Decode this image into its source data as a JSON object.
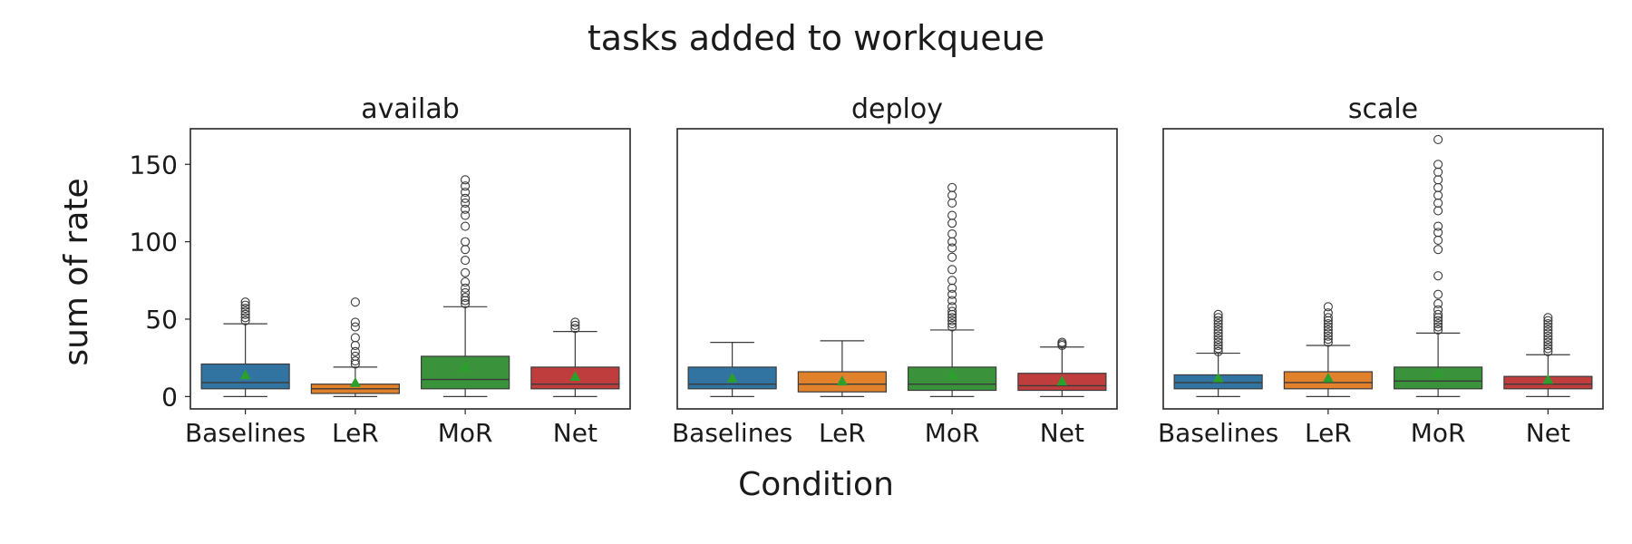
{
  "chart_data": {
    "type": "box",
    "title": "tasks added to workqueue",
    "xlabel": "Condition",
    "ylabel": "sum of rate",
    "ylim": [
      -8,
      173
    ],
    "yticks": [
      0,
      50,
      100,
      150
    ],
    "categories": [
      "Baselines",
      "LeR",
      "MoR",
      "Net"
    ],
    "colors": {
      "Baselines": "#3274a1",
      "LeR": "#e1812c",
      "MoR": "#3a923a",
      "Net": "#c03d3e",
      "mean_marker": "#2ca02c"
    },
    "grid": false,
    "legend": "none",
    "panels": [
      {
        "name": "availab",
        "boxes": [
          {
            "category": "Baselines",
            "whisker_low": 0,
            "q1": 5,
            "median": 9,
            "q3": 21,
            "whisker_high": 47,
            "mean": 14,
            "outliers": [
              49,
              51,
              53,
              55,
              57,
              59,
              61
            ]
          },
          {
            "category": "LeR",
            "whisker_low": 0,
            "q1": 2,
            "median": 5,
            "q3": 8,
            "whisker_high": 19,
            "mean": 9,
            "outliers": [
              21,
              23,
              26,
              29,
              33,
              38,
              45,
              48,
              61
            ]
          },
          {
            "category": "MoR",
            "whisker_low": 0,
            "q1": 5,
            "median": 11,
            "q3": 26,
            "whisker_high": 58,
            "mean": 19,
            "outliers": [
              60,
              62,
              64,
              67,
              70,
              74,
              80,
              88,
              95,
              100,
              110,
              117,
              121,
              125,
              128,
              132,
              136,
              140
            ]
          },
          {
            "category": "Net",
            "whisker_low": 0,
            "q1": 5,
            "median": 8,
            "q3": 19,
            "whisker_high": 42,
            "mean": 13,
            "outliers": [
              44,
              46,
              48
            ]
          }
        ]
      },
      {
        "name": "deploy",
        "boxes": [
          {
            "category": "Baselines",
            "whisker_low": 0,
            "q1": 5,
            "median": 8,
            "q3": 19,
            "whisker_high": 35,
            "mean": 12,
            "outliers": []
          },
          {
            "category": "LeR",
            "whisker_low": 0,
            "q1": 3,
            "median": 8,
            "q3": 16,
            "whisker_high": 36,
            "mean": 10,
            "outliers": []
          },
          {
            "category": "MoR",
            "whisker_low": 0,
            "q1": 4,
            "median": 8,
            "q3": 19,
            "whisker_high": 43,
            "mean": 14,
            "outliers": [
              45,
              47,
              49,
              51,
              53,
              55,
              58,
              62,
              66,
              70,
              75,
              82,
              90,
              96,
              100,
              105,
              112,
              117,
              125,
              130,
              135
            ]
          },
          {
            "category": "Net",
            "whisker_low": 0,
            "q1": 4,
            "median": 7,
            "q3": 15,
            "whisker_high": 32,
            "mean": 10,
            "outliers": [
              33,
              34,
              35
            ]
          }
        ]
      },
      {
        "name": "scale",
        "boxes": [
          {
            "category": "Baselines",
            "whisker_low": 0,
            "q1": 5,
            "median": 9,
            "q3": 14,
            "whisker_high": 28,
            "mean": 12,
            "outliers": [
              29,
              31,
              33,
              35,
              37,
              39,
              41,
              43,
              45,
              47,
              49,
              51,
              53
            ]
          },
          {
            "category": "LeR",
            "whisker_low": 0,
            "q1": 5,
            "median": 9,
            "q3": 16,
            "whisker_high": 33,
            "mean": 12,
            "outliers": [
              35,
              37,
              39,
              41,
              43,
              45,
              47,
              49,
              51,
              54,
              58
            ]
          },
          {
            "category": "MoR",
            "whisker_low": 0,
            "q1": 5,
            "median": 10,
            "q3": 19,
            "whisker_high": 41,
            "mean": 15,
            "outliers": [
              43,
              45,
              47,
              49,
              51,
              53,
              56,
              60,
              66,
              78,
              95,
              101,
              106,
              110,
              120,
              125,
              130,
              135,
              140,
              145,
              150,
              166
            ]
          },
          {
            "category": "Net",
            "whisker_low": 0,
            "q1": 5,
            "median": 8,
            "q3": 13,
            "whisker_high": 27,
            "mean": 11,
            "outliers": [
              29,
              31,
              33,
              35,
              37,
              39,
              41,
              43,
              45,
              47,
              49,
              51
            ]
          }
        ]
      }
    ]
  }
}
